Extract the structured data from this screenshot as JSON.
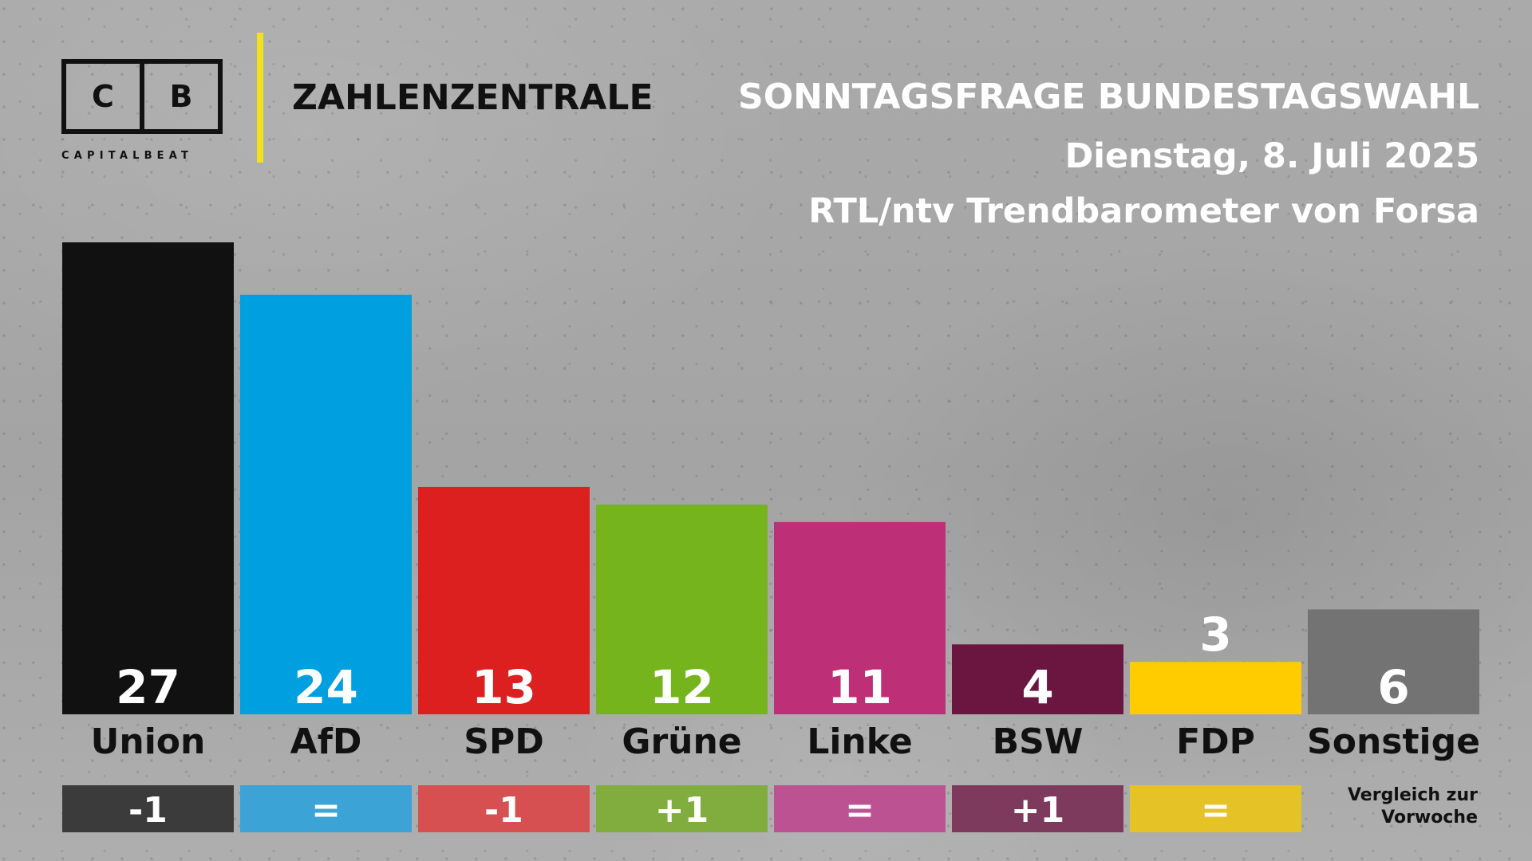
{
  "brand": {
    "logo_left": "C",
    "logo_right": "B",
    "logo_sub": "CAPITALBEAT",
    "section": "ZAHLENZENTRALE"
  },
  "header": {
    "title": "SONNTAGSFRAGE BUNDESTAGSWAHL",
    "date": "Dienstag, 8. Juli 2025",
    "source": "RTL/ntv Trendbarometer von Forsa"
  },
  "change_note": {
    "line1": "Vergleich zur",
    "line2": "Vorwoche"
  },
  "colors": {
    "accent_rule": "#f2e21c",
    "value_on_bar": "#ffffff",
    "value_above_bar": "#ffffff",
    "label": "#111111"
  },
  "chart_data": {
    "type": "bar",
    "categories": [
      "Union",
      "AfD",
      "SPD",
      "Grüne",
      "Linke",
      "BSW",
      "FDP",
      "Sonstige"
    ],
    "values": [
      27,
      24,
      13,
      12,
      11,
      4,
      3,
      6
    ],
    "changes": [
      "-1",
      "=",
      "-1",
      "+1",
      "=",
      "+1",
      "=",
      ""
    ],
    "bar_colors": [
      "#111111",
      "#009fe0",
      "#dc1f1f",
      "#75b41c",
      "#bd2f77",
      "#6a1640",
      "#ffcc00",
      "#737373"
    ],
    "change_colors": [
      "#3b3b3b",
      "#3ba3d5",
      "#d75051",
      "#80ad3d",
      "#bd5292",
      "#7d3a5c",
      "#e5c326",
      ""
    ],
    "ylim": [
      0,
      27
    ],
    "title": "SONNTAGSFRAGE BUNDESTAGSWAHL",
    "xlabel": "",
    "ylabel": "",
    "grid": false,
    "legend": "none"
  }
}
